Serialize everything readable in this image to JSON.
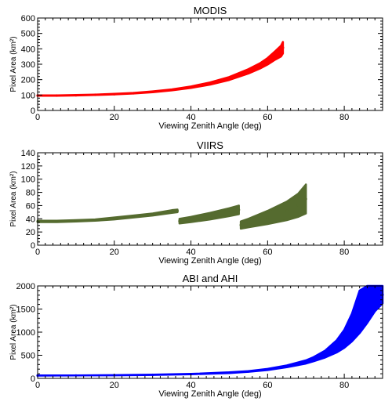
{
  "chart_data": [
    {
      "type": "scatter",
      "title": "MODIS",
      "xlabel": "Viewing Zenith Angle (deg)",
      "ylabel": "Pixel Area (km²)",
      "xlim": [
        0,
        90
      ],
      "ylim": [
        0,
        600
      ],
      "xticks": [
        "0",
        "20",
        "40",
        "60",
        "80"
      ],
      "yticks": [
        "0",
        "100",
        "200",
        "300",
        "400",
        "500",
        "600"
      ],
      "color": "#ff0000",
      "series": [
        {
          "x": [
            0,
            5,
            10,
            15,
            20,
            25,
            30,
            35,
            40,
            45,
            50,
            55,
            58,
            60,
            62,
            63.5,
            64
          ],
          "y_low": [
            95,
            95,
            97,
            100,
            104,
            110,
            118,
            130,
            146,
            168,
            198,
            240,
            272,
            298,
            330,
            350,
            370
          ],
          "y_high": [
            98,
            98,
            100,
            103,
            108,
            114,
            124,
            137,
            156,
            182,
            217,
            268,
            306,
            340,
            385,
            420,
            445
          ]
        }
      ]
    },
    {
      "type": "scatter",
      "title": "VIIRS",
      "xlabel": "Viewing Zenith Angle (deg)",
      "ylabel": "Pixel Area (km²)",
      "xlim": [
        0,
        90
      ],
      "ylim": [
        0,
        140
      ],
      "xticks": [
        "0",
        "20",
        "40",
        "60",
        "80"
      ],
      "yticks": [
        "0",
        "20",
        "40",
        "60",
        "80",
        "100",
        "120",
        "140"
      ],
      "color": "#556b2f",
      "series": [
        {
          "x": [
            0,
            5,
            10,
            15,
            20,
            25,
            30,
            35,
            36.5,
            37,
            40,
            45,
            50,
            52.5,
            53,
            55,
            60,
            65,
            68,
            70
          ],
          "y_low": [
            35,
            35,
            36,
            37,
            39,
            42,
            45,
            49,
            50,
            33,
            35,
            39,
            44,
            47,
            25,
            27,
            32,
            38,
            43,
            48
          ],
          "y_high": [
            37,
            37,
            38,
            39,
            42,
            45,
            48,
            53,
            54,
            40,
            43,
            49,
            56,
            60,
            36,
            40,
            52,
            66,
            78,
            92
          ]
        }
      ]
    },
    {
      "type": "scatter",
      "title": "ABI and AHI",
      "xlabel": "Viewing Zenith Angle (deg)",
      "ylabel": "Pixel Area (km²)",
      "xlim": [
        0,
        90
      ],
      "ylim": [
        0,
        2000
      ],
      "xticks": [
        "0",
        "20",
        "40",
        "60",
        "80"
      ],
      "yticks": [
        "0",
        "500",
        "1000",
        "1500",
        "2000"
      ],
      "color": "#0000ff",
      "series": [
        {
          "x": [
            0,
            10,
            20,
            30,
            40,
            50,
            55,
            60,
            65,
            70,
            72,
            75,
            78,
            80,
            82,
            84,
            86,
            88,
            90
          ],
          "y_low": [
            60,
            62,
            66,
            74,
            88,
            116,
            142,
            180,
            240,
            320,
            370,
            450,
            560,
            660,
            800,
            980,
            1200,
            1450,
            1620
          ],
          "y_high": [
            62,
            65,
            70,
            80,
            96,
            130,
            158,
            205,
            280,
            390,
            460,
            600,
            820,
            1050,
            1400,
            1900,
            2000,
            2000,
            2000
          ]
        }
      ]
    }
  ]
}
